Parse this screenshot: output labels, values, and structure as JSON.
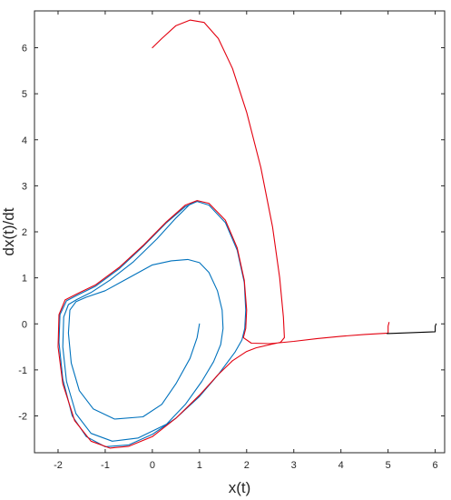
{
  "chart_data": {
    "type": "line",
    "title": "",
    "xlabel": "x(t)",
    "ylabel": "dx(t)/dt",
    "xlim": [
      -2.5,
      6.2
    ],
    "ylim": [
      -2.8,
      6.8
    ],
    "xticks": [
      -2,
      -1,
      0,
      1,
      2,
      3,
      4,
      5,
      6
    ],
    "yticks": [
      -2,
      -1,
      0,
      1,
      2,
      3,
      4,
      5,
      6
    ],
    "grid": false,
    "legend": "none",
    "series": [
      {
        "color": "#0072BD",
        "points": [
          [
            1.0,
            0.0
          ],
          [
            0.95,
            -0.3
          ],
          [
            0.8,
            -0.75
          ],
          [
            0.5,
            -1.3
          ],
          [
            0.2,
            -1.75
          ],
          [
            -0.2,
            -2.02
          ],
          [
            -0.8,
            -2.07
          ],
          [
            -1.25,
            -1.85
          ],
          [
            -1.55,
            -1.45
          ],
          [
            -1.72,
            -0.85
          ],
          [
            -1.78,
            -0.2
          ],
          [
            -1.75,
            0.3
          ],
          [
            -1.62,
            0.48
          ],
          [
            -1.4,
            0.58
          ],
          [
            -1.0,
            0.72
          ],
          [
            -0.5,
            1.0
          ],
          [
            0.0,
            1.28
          ],
          [
            0.4,
            1.37
          ],
          [
            0.75,
            1.4
          ],
          [
            1.0,
            1.33
          ],
          [
            1.2,
            1.12
          ],
          [
            1.38,
            0.72
          ],
          [
            1.48,
            0.3
          ],
          [
            1.5,
            -0.1
          ],
          [
            1.45,
            -0.45
          ],
          [
            1.3,
            -0.82
          ],
          [
            1.05,
            -1.25
          ],
          [
            0.7,
            -1.75
          ],
          [
            0.3,
            -2.18
          ],
          [
            -0.3,
            -2.48
          ],
          [
            -0.85,
            -2.55
          ],
          [
            -1.3,
            -2.38
          ],
          [
            -1.62,
            -1.95
          ],
          [
            -1.82,
            -1.25
          ],
          [
            -1.9,
            -0.5
          ],
          [
            -1.88,
            0.15
          ],
          [
            -1.78,
            0.42
          ],
          [
            -1.6,
            0.53
          ],
          [
            -1.3,
            0.68
          ],
          [
            -0.9,
            0.95
          ],
          [
            -0.4,
            1.35
          ],
          [
            0.1,
            1.85
          ],
          [
            0.5,
            2.3
          ],
          [
            0.8,
            2.6
          ],
          [
            0.95,
            2.66
          ],
          [
            1.2,
            2.58
          ],
          [
            1.55,
            2.2
          ],
          [
            1.8,
            1.6
          ],
          [
            1.95,
            0.9
          ],
          [
            1.98,
            0.3
          ],
          [
            1.96,
            -0.1
          ],
          [
            1.9,
            -0.35
          ],
          [
            1.75,
            -0.62
          ],
          [
            1.4,
            -1.1
          ],
          [
            1.0,
            -1.58
          ],
          [
            0.5,
            -2.05
          ],
          [
            0.0,
            -2.4
          ],
          [
            -0.5,
            -2.63
          ],
          [
            -1.0,
            -2.67
          ],
          [
            -1.4,
            -2.45
          ],
          [
            -1.7,
            -2.0
          ],
          [
            -1.9,
            -1.2
          ],
          [
            -1.98,
            -0.4
          ],
          [
            -1.96,
            0.2
          ],
          [
            -1.82,
            0.5
          ],
          [
            -1.6,
            0.62
          ],
          [
            -1.2,
            0.82
          ],
          [
            -0.7,
            1.2
          ],
          [
            -0.2,
            1.68
          ],
          [
            0.3,
            2.2
          ],
          [
            0.7,
            2.55
          ],
          [
            0.95,
            2.66
          ]
        ]
      },
      {
        "color": "#E3000F",
        "points": [
          [
            0.0,
            6.0
          ],
          [
            0.2,
            6.2
          ],
          [
            0.5,
            6.48
          ],
          [
            0.8,
            6.6
          ],
          [
            1.1,
            6.55
          ],
          [
            1.4,
            6.2
          ],
          [
            1.7,
            5.55
          ],
          [
            2.0,
            4.6
          ],
          [
            2.3,
            3.4
          ],
          [
            2.55,
            2.1
          ],
          [
            2.7,
            1.0
          ],
          [
            2.78,
            0.15
          ],
          [
            2.8,
            -0.3
          ],
          [
            2.72,
            -0.4
          ],
          [
            2.5,
            -0.45
          ],
          [
            2.2,
            -0.52
          ],
          [
            2.0,
            -0.6
          ],
          [
            1.7,
            -0.8
          ],
          [
            1.4,
            -1.1
          ],
          [
            1.0,
            -1.55
          ],
          [
            0.5,
            -2.05
          ],
          [
            0.0,
            -2.45
          ],
          [
            -0.5,
            -2.66
          ],
          [
            -0.9,
            -2.7
          ],
          [
            -1.3,
            -2.55
          ],
          [
            -1.65,
            -2.1
          ],
          [
            -1.9,
            -1.3
          ],
          [
            -2.0,
            -0.5
          ],
          [
            -1.98,
            0.2
          ],
          [
            -1.85,
            0.52
          ],
          [
            -1.6,
            0.65
          ],
          [
            -1.2,
            0.85
          ],
          [
            -0.7,
            1.23
          ],
          [
            -0.2,
            1.7
          ],
          [
            0.3,
            2.22
          ],
          [
            0.7,
            2.58
          ],
          [
            0.95,
            2.68
          ],
          [
            1.2,
            2.62
          ],
          [
            1.55,
            2.25
          ],
          [
            1.8,
            1.65
          ],
          [
            1.95,
            0.95
          ],
          [
            2.0,
            0.3
          ],
          [
            1.98,
            -0.1
          ],
          [
            1.93,
            -0.3
          ],
          [
            2.1,
            -0.42
          ],
          [
            2.5,
            -0.43
          ],
          [
            3.0,
            -0.38
          ],
          [
            3.5,
            -0.32
          ],
          [
            4.0,
            -0.27
          ],
          [
            4.5,
            -0.23
          ],
          [
            5.0,
            -0.2
          ],
          [
            5.0,
            -0.05
          ],
          [
            5.02,
            0.03
          ]
        ]
      },
      {
        "color": "#000000",
        "points": [
          [
            4.98,
            -0.21
          ],
          [
            5.5,
            -0.19
          ],
          [
            6.0,
            -0.17
          ],
          [
            6.0,
            -0.05
          ],
          [
            6.02,
            0.0
          ]
        ]
      }
    ]
  }
}
